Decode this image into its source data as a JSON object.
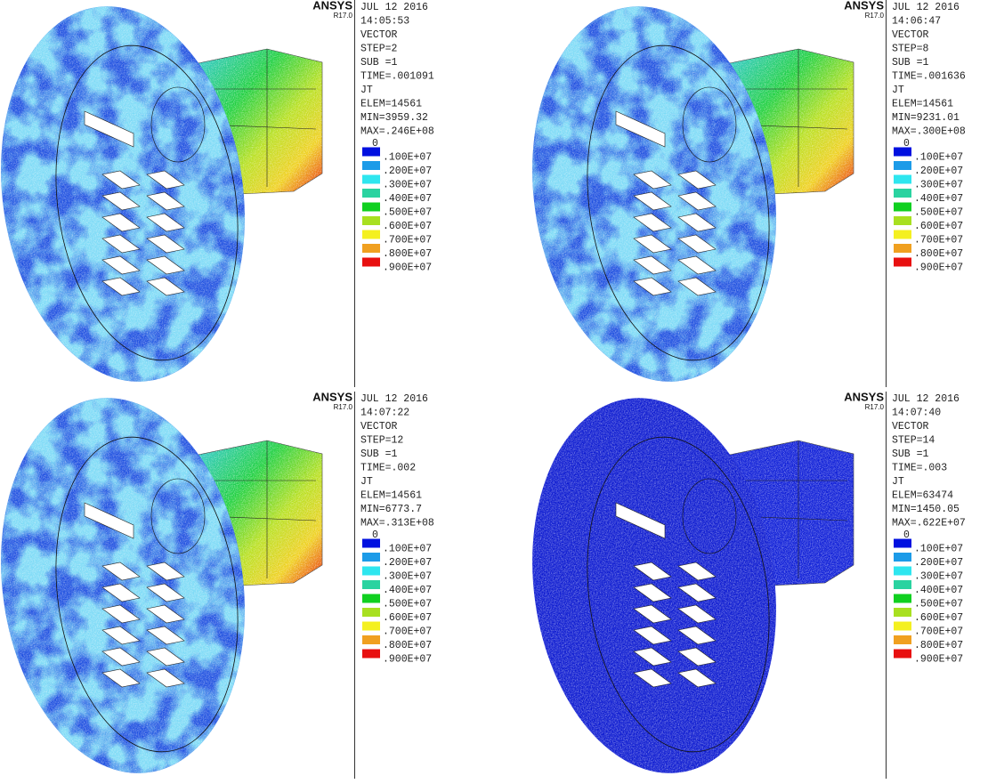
{
  "legend_colors": [
    "#0010e0",
    "#1c9be8",
    "#2ee6ef",
    "#2ad3a0",
    "#10d020",
    "#a8e020",
    "#f4f020",
    "#f0a020",
    "#e81010"
  ],
  "panels": [
    {
      "logo": "ANSYS",
      "version": "R17.0",
      "info": [
        "JUL 12 2016",
        "14:05:53",
        "VECTOR",
        "STEP=2",
        "SUB =1",
        "TIME=.001091",
        "JT",
        "ELEM=14561",
        "MIN=3959.32",
        "MAX=.246E+08"
      ],
      "legend": [
        "0",
        ".100E+07",
        ".200E+07",
        ".300E+07",
        ".400E+07",
        ".500E+07",
        ".600E+07",
        ".700E+07",
        ".800E+07",
        ".900E+07"
      ]
    },
    {
      "logo": "ANSYS",
      "version": "R17.0",
      "info": [
        "JUL 12 2016",
        "14:06:47",
        "VECTOR",
        "STEP=8",
        "SUB =1",
        "TIME=.001636",
        "JT",
        "ELEM=14561",
        "MIN=9231.01",
        "MAX=.300E+08"
      ],
      "legend": [
        "0",
        ".100E+07",
        ".200E+07",
        ".300E+07",
        ".400E+07",
        ".500E+07",
        ".600E+07",
        ".700E+07",
        ".800E+07",
        ".900E+07"
      ]
    },
    {
      "logo": "ANSYS",
      "version": "R17.0",
      "info": [
        "JUL 12 2016",
        "14:07:22",
        "VECTOR",
        "STEP=12",
        "SUB =1",
        "TIME=.002",
        "JT",
        "ELEM=14561",
        "MIN=6773.7",
        "MAX=.313E+08"
      ],
      "legend": [
        "0",
        ".100E+07",
        ".200E+07",
        ".300E+07",
        ".400E+07",
        ".500E+07",
        ".600E+07",
        ".700E+07",
        ".800E+07",
        ".900E+07"
      ]
    },
    {
      "logo": "ANSYS",
      "version": "R17.0",
      "info": [
        "JUL 12 2016",
        "14:07:40",
        "VECTOR",
        "STEP=14",
        "SUB =1",
        "TIME=.003",
        "JT",
        "ELEM=63474",
        "MIN=1450.05",
        "MAX=.622E+07"
      ],
      "legend": [
        "0",
        ".100E+07",
        ".200E+07",
        ".300E+07",
        ".400E+07",
        ".500E+07",
        ".600E+07",
        ".700E+07",
        ".800E+07",
        ".900E+07"
      ]
    }
  ]
}
